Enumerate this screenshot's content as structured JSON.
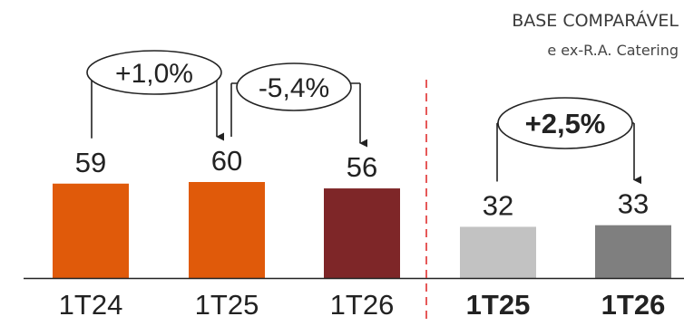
{
  "note": {
    "line1": "BASE COMPARÁVEL",
    "line2": "e ex-R.A. Catering"
  },
  "colors": {
    "bar_1T24": "#e05a0a",
    "bar_1T25": "#e05a0a",
    "bar_1T26": "#7e2628",
    "bar_1T25_comparable": "#c2c2c2",
    "bar_1T26_comparable": "#7f7f7f",
    "divider": "#e03030",
    "axis": "#222222"
  },
  "chart_data": {
    "type": "bar",
    "categories": [
      "1T24",
      "1T25",
      "1T26",
      "1T25",
      "1T26"
    ],
    "category_bold": [
      false,
      false,
      false,
      true,
      true
    ],
    "values": [
      59,
      60,
      56,
      32,
      33
    ],
    "data_labels": [
      "59",
      "60",
      "56",
      "32",
      "33"
    ],
    "groups": [
      {
        "indices": [
          0,
          1,
          2
        ]
      },
      {
        "indices": [
          3,
          4
        ]
      }
    ],
    "annotations": [
      {
        "from": 0,
        "to": 1,
        "text": "+1,0%",
        "bold": false
      },
      {
        "from": 1,
        "to": 2,
        "text": "-5,4%",
        "bold": false
      },
      {
        "from": 3,
        "to": 4,
        "text": "+2,5%",
        "bold": true
      }
    ],
    "title": "",
    "xlabel": "",
    "ylabel": "",
    "ylim": [
      0,
      70
    ],
    "grid": false,
    "legend": "none"
  }
}
